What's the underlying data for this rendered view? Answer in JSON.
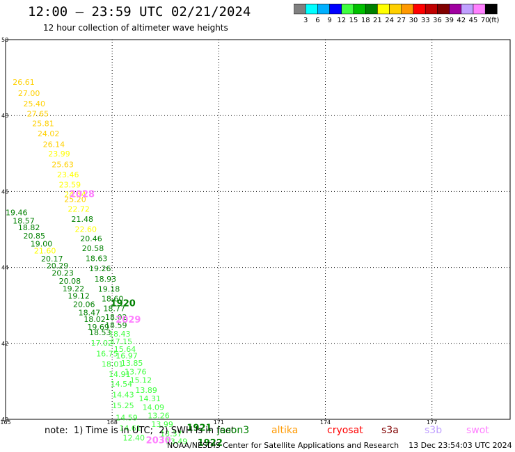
{
  "header": {
    "title": "12:00 — 23:59 UTC 02/21/2024",
    "subtitle": "12 hour collection of altimeter wave heights"
  },
  "colorbar": {
    "colors": [
      "#808080",
      "#00ffff",
      "#00b0ff",
      "#0000ff",
      "#40ff40",
      "#00c000",
      "#008000",
      "#ffff00",
      "#ffd000",
      "#ff9900",
      "#ff0000",
      "#c00000",
      "#800000",
      "#a000a0",
      "#c0a0ff",
      "#ff80ff",
      "#000000"
    ],
    "labels": [
      "3",
      "6",
      "9",
      "12",
      "15",
      "18",
      "21",
      "24",
      "27",
      "30",
      "33",
      "36",
      "39",
      "42",
      "45",
      "70"
    ],
    "unit": "(ft)"
  },
  "map": {
    "x_ticks": [
      "165",
      "168",
      "171",
      "174",
      "177"
    ],
    "y_ticks": [
      "50",
      "48",
      "46",
      "44",
      "42",
      "40"
    ],
    "points": [
      {
        "lon": 165.2,
        "lat": 48.81,
        "v": "26.61",
        "c": "#ffd000"
      },
      {
        "lon": 165.35,
        "lat": 48.52,
        "v": "27.00",
        "c": "#ffd000"
      },
      {
        "lon": 165.5,
        "lat": 48.24,
        "v": "25.40",
        "c": "#ffd000"
      },
      {
        "lon": 165.6,
        "lat": 47.98,
        "v": "27.65",
        "c": "#ffd000"
      },
      {
        "lon": 165.75,
        "lat": 47.72,
        "v": "25.81",
        "c": "#ffd000"
      },
      {
        "lon": 165.9,
        "lat": 47.45,
        "v": "24.02",
        "c": "#ffd000"
      },
      {
        "lon": 166.05,
        "lat": 47.17,
        "v": "26.14",
        "c": "#ffd000"
      },
      {
        "lon": 166.2,
        "lat": 46.92,
        "v": "23.99",
        "c": "#ffff00"
      },
      {
        "lon": 166.3,
        "lat": 46.64,
        "v": "25.63",
        "c": "#ffd000"
      },
      {
        "lon": 166.45,
        "lat": 46.37,
        "v": "23.46",
        "c": "#ffff00"
      },
      {
        "lon": 166.5,
        "lat": 46.11,
        "v": "23.59",
        "c": "#ffff00"
      },
      {
        "lon": 166.65,
        "lat": 45.85,
        "v": "24.54",
        "c": "#ffff00"
      },
      {
        "lon": 166.65,
        "lat": 45.72,
        "v": "25.20",
        "c": "#ffd000"
      },
      {
        "lon": 166.75,
        "lat": 45.47,
        "v": "22.72",
        "c": "#ffff00"
      },
      {
        "lon": 166.85,
        "lat": 45.2,
        "v": "21.48",
        "c": "#008000"
      },
      {
        "lon": 166.95,
        "lat": 44.94,
        "v": "22.60",
        "c": "#ffff00"
      },
      {
        "lon": 167.1,
        "lat": 44.69,
        "v": "20.46",
        "c": "#008000"
      },
      {
        "lon": 167.15,
        "lat": 44.43,
        "v": "20.58",
        "c": "#008000"
      },
      {
        "lon": 165.0,
        "lat": 45.38,
        "v": "19.46",
        "c": "#008000"
      },
      {
        "lon": 165.2,
        "lat": 45.16,
        "v": "18.57",
        "c": "#008000"
      },
      {
        "lon": 165.35,
        "lat": 44.98,
        "v": "18.82",
        "c": "#008000"
      },
      {
        "lon": 165.5,
        "lat": 44.76,
        "v": "20.85",
        "c": "#008000"
      },
      {
        "lon": 165.7,
        "lat": 44.55,
        "v": "19.00",
        "c": "#008000"
      },
      {
        "lon": 165.8,
        "lat": 44.37,
        "v": "21.60",
        "c": "#ffff00"
      },
      {
        "lon": 166.0,
        "lat": 44.16,
        "v": "20.17",
        "c": "#008000"
      },
      {
        "lon": 166.15,
        "lat": 43.97,
        "v": "20.29",
        "c": "#008000"
      },
      {
        "lon": 166.3,
        "lat": 43.78,
        "v": "20.23",
        "c": "#008000"
      },
      {
        "lon": 166.5,
        "lat": 43.57,
        "v": "20.08",
        "c": "#008000"
      },
      {
        "lon": 166.6,
        "lat": 43.37,
        "v": "19.22",
        "c": "#008000"
      },
      {
        "lon": 166.75,
        "lat": 43.18,
        "v": "19.12",
        "c": "#008000"
      },
      {
        "lon": 166.9,
        "lat": 42.96,
        "v": "20.06",
        "c": "#008000"
      },
      {
        "lon": 167.05,
        "lat": 42.74,
        "v": "18.47",
        "c": "#008000"
      },
      {
        "lon": 167.2,
        "lat": 42.56,
        "v": "18.02",
        "c": "#008000"
      },
      {
        "lon": 167.3,
        "lat": 42.36,
        "v": "19.69",
        "c": "#008000"
      },
      {
        "lon": 167.35,
        "lat": 42.22,
        "v": "18.53",
        "c": "#008000"
      },
      {
        "lon": 167.25,
        "lat": 44.17,
        "v": "18.63",
        "c": "#008000"
      },
      {
        "lon": 167.35,
        "lat": 43.9,
        "v": "19.26",
        "c": "#008000"
      },
      {
        "lon": 167.5,
        "lat": 43.63,
        "v": "18.93",
        "c": "#008000"
      },
      {
        "lon": 167.6,
        "lat": 43.36,
        "v": "19.18",
        "c": "#008000"
      },
      {
        "lon": 167.7,
        "lat": 43.1,
        "v": "18.60",
        "c": "#008000"
      },
      {
        "lon": 167.75,
        "lat": 42.85,
        "v": "18.77",
        "c": "#008000"
      },
      {
        "lon": 167.8,
        "lat": 42.62,
        "v": "18.02",
        "c": "#008000"
      },
      {
        "lon": 167.8,
        "lat": 42.41,
        "v": "18.59",
        "c": "#008000"
      },
      {
        "lon": 167.9,
        "lat": 42.18,
        "v": "18.43",
        "c": "#40ff40"
      },
      {
        "lon": 167.95,
        "lat": 41.98,
        "v": "17.15",
        "c": "#40ff40"
      },
      {
        "lon": 168.05,
        "lat": 41.78,
        "v": "15.64",
        "c": "#40ff40"
      },
      {
        "lon": 168.1,
        "lat": 41.6,
        "v": "16.97",
        "c": "#40ff40"
      },
      {
        "lon": 167.4,
        "lat": 41.94,
        "v": "17.02",
        "c": "#40ff40"
      },
      {
        "lon": 167.55,
        "lat": 41.66,
        "v": "16.75",
        "c": "#40ff40"
      },
      {
        "lon": 167.7,
        "lat": 41.38,
        "v": "18.01",
        "c": "#40ff40"
      },
      {
        "lon": 167.9,
        "lat": 41.12,
        "v": "14.91",
        "c": "#40ff40"
      },
      {
        "lon": 167.95,
        "lat": 40.86,
        "v": "14.54",
        "c": "#40ff40"
      },
      {
        "lon": 168.0,
        "lat": 40.58,
        "v": "14.43",
        "c": "#40ff40"
      },
      {
        "lon": 168.25,
        "lat": 41.41,
        "v": "13.85",
        "c": "#40ff40"
      },
      {
        "lon": 168.35,
        "lat": 41.18,
        "v": "13.76",
        "c": "#40ff40"
      },
      {
        "lon": 168.5,
        "lat": 40.96,
        "v": "15.12",
        "c": "#40ff40"
      },
      {
        "lon": 168.65,
        "lat": 40.7,
        "v": "13.89",
        "c": "#40ff40"
      },
      {
        "lon": 168.75,
        "lat": 40.48,
        "v": "14.31",
        "c": "#40ff40"
      },
      {
        "lon": 168.85,
        "lat": 40.25,
        "v": "14.09",
        "c": "#40ff40"
      },
      {
        "lon": 169.0,
        "lat": 40.03,
        "v": "13.26",
        "c": "#40ff40"
      },
      {
        "lon": 169.1,
        "lat": 39.8,
        "v": "13.99",
        "c": "#40ff40"
      },
      {
        "lon": 168.0,
        "lat": 40.29,
        "v": "15.25",
        "c": "#40ff40"
      },
      {
        "lon": 168.1,
        "lat": 39.97,
        "v": "14.59",
        "c": "#40ff40"
      },
      {
        "lon": 168.2,
        "lat": 39.7,
        "v": "14.61",
        "c": "#40ff40"
      },
      {
        "lon": 168.3,
        "lat": 39.44,
        "v": "12.40",
        "c": "#40ff40"
      },
      {
        "lon": 169.35,
        "lat": 39.55,
        "v": "13.37",
        "c": "#40ff40"
      },
      {
        "lon": 169.5,
        "lat": 39.35,
        "v": "13.49",
        "c": "#40ff40"
      }
    ],
    "passes": [
      {
        "lon": 166.8,
        "lat": 45.85,
        "label": "2028",
        "c": "#ff80ff"
      },
      {
        "lon": 167.95,
        "lat": 42.98,
        "label": "1920",
        "c": "#008000"
      },
      {
        "lon": 168.1,
        "lat": 42.55,
        "label": "2029",
        "c": "#ff80ff"
      },
      {
        "lon": 170.1,
        "lat": 39.7,
        "label": "1921",
        "c": "#008000"
      },
      {
        "lon": 168.95,
        "lat": 39.37,
        "label": "2030",
        "c": "#ff80ff"
      },
      {
        "lon": 170.4,
        "lat": 39.3,
        "label": "1922",
        "c": "#008000"
      }
    ]
  },
  "footer": {
    "note": "note:  1) Time is in UTC;  2) SWH is in feet",
    "legend": [
      {
        "name": "jason3",
        "color": "#008000"
      },
      {
        "name": "altika",
        "color": "#ff9900"
      },
      {
        "name": "cryosat",
        "color": "#ff0000"
      },
      {
        "name": "s3a",
        "color": "#800000"
      },
      {
        "name": "s3b",
        "color": "#c0a0ff"
      },
      {
        "name": "swot",
        "color": "#ff80ff"
      }
    ],
    "credit": "NOAA/NESDIS Center for Satellite Applications and Research    13 Dec 23:54:03 UTC 2024"
  }
}
